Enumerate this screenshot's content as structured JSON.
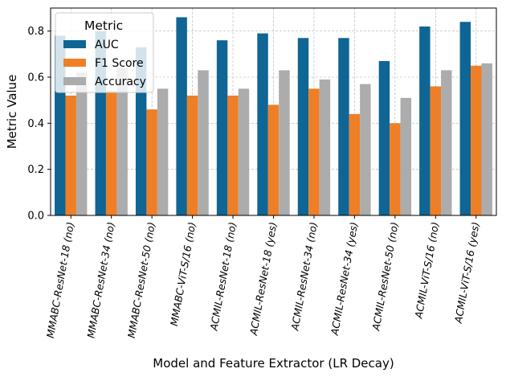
{
  "chart_data": {
    "type": "bar",
    "xlabel": "Model and Feature Extractor (LR Decay)",
    "ylabel": "Metric Value",
    "ylim": [
      0,
      0.9
    ],
    "yticks": [
      "0.0",
      "0.2",
      "0.4",
      "0.6",
      "0.8"
    ],
    "ytick_values": [
      0,
      0.2,
      0.4,
      0.6,
      0.8
    ],
    "grid": true,
    "legend": {
      "title": "Metric",
      "placement": "top-left"
    },
    "categories": [
      "MMABC-ResNet-18 (no)",
      "MMABC-ResNet-34 (no)",
      "MMABC-ResNet-50 (no)",
      "MMABC-ViT-S/16 (no)",
      "ACMIL-ResNet-18 (no)",
      "ACMIL-ResNet-18 (yes)",
      "ACMIL-ResNet-34 (no)",
      "ACMIL-ResNet-34 (yes)",
      "ACMIL-ResNet-50 (no)",
      "ACMIL-ViT-S/16 (no)",
      "ACMIL-ViT-S/16 (yes)"
    ],
    "series": [
      {
        "name": "AUC",
        "color": "#0f6594",
        "values": [
          0.78,
          0.8,
          0.73,
          0.86,
          0.76,
          0.79,
          0.77,
          0.77,
          0.67,
          0.82,
          0.84
        ]
      },
      {
        "name": "F1 Score",
        "color": "#ee7f26",
        "values": [
          0.52,
          0.54,
          0.46,
          0.52,
          0.52,
          0.48,
          0.55,
          0.44,
          0.4,
          0.56,
          0.65
        ]
      },
      {
        "name": "Accuracy",
        "color": "#acacac",
        "values": [
          0.62,
          0.64,
          0.55,
          0.63,
          0.55,
          0.63,
          0.59,
          0.57,
          0.51,
          0.63,
          0.66
        ]
      }
    ]
  }
}
